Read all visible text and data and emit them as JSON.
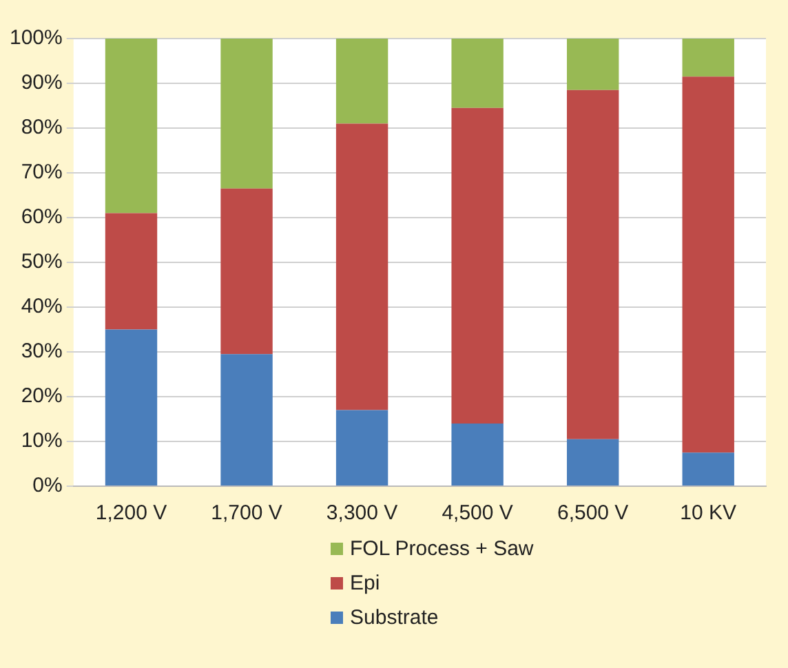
{
  "chart_data": {
    "type": "bar",
    "stacked": true,
    "categories": [
      "1,200 V",
      "1,700 V",
      "3,300 V",
      "4,500 V",
      "6,500 V",
      "10 KV"
    ],
    "series": [
      {
        "name": "Substrate",
        "color": "#4a7ebb",
        "values": [
          35,
          29.5,
          17,
          14,
          10.5,
          7.5
        ]
      },
      {
        "name": "Epi",
        "color": "#be4b48",
        "values": [
          26,
          37,
          64,
          70.5,
          78,
          84
        ]
      },
      {
        "name": "FOL Process + Saw",
        "color": "#98b954",
        "values": [
          39,
          33.5,
          19,
          15.5,
          11.5,
          8.5
        ]
      }
    ],
    "ylim": [
      0,
      100
    ],
    "yticks": [
      {
        "value": 0,
        "label": "0%"
      },
      {
        "value": 10,
        "label": "10%"
      },
      {
        "value": 20,
        "label": "20%"
      },
      {
        "value": 30,
        "label": "30%"
      },
      {
        "value": 40,
        "label": "40%"
      },
      {
        "value": 50,
        "label": "50%"
      },
      {
        "value": 60,
        "label": "60%"
      },
      {
        "value": 70,
        "label": "70%"
      },
      {
        "value": 80,
        "label": "80%"
      },
      {
        "value": 90,
        "label": "90%"
      },
      {
        "value": 100,
        "label": "100%"
      }
    ],
    "grid": "y",
    "legend": "bottom"
  }
}
